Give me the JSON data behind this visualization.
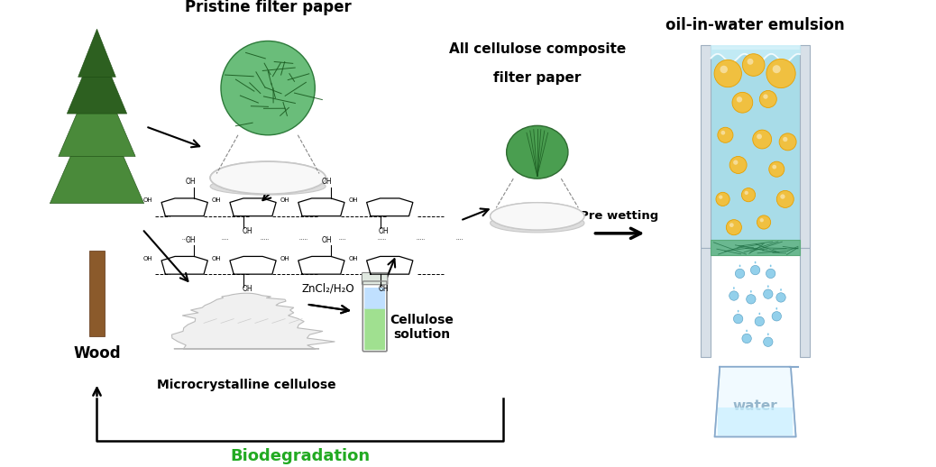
{
  "background_color": "#ffffff",
  "labels": {
    "pristine_filter_paper": "Pristine filter paper",
    "all_cellulose_line1": "All cellulose composite",
    "all_cellulose_line2": "filter paper",
    "oil_in_water": "oil-in-water emulsion",
    "pre_wetting": "Pre wetting",
    "wood": "Wood",
    "microcrystalline": "Microcrystalline cellulose",
    "cellulose_solution": "Cellulose\nsolution",
    "biodegradation": "Biodegradation",
    "water": "water",
    "zncl2": "ZnCl₂/H₂O"
  },
  "colors": {
    "sky_blue": "#a8dce8",
    "oil_yellow": "#f0c040",
    "oil_orange": "#e8a000",
    "green_membrane": "#5aaa7a",
    "teal_membrane": "#6ab890",
    "biodeg_green": "#22aa22",
    "tube_green": "#a0e090",
    "tube_blue": "#c0e0ff",
    "beaker_blue": "#c8f0ff",
    "drop_blue": "#80c8e8",
    "drop_blue_dark": "#4090b8",
    "tree_green_light": "#4a8a3a",
    "tree_green_dark": "#2d6020",
    "trunk_brown": "#8b5a2b",
    "powder_white": "#f0f0f0",
    "filter_white": "#f8f8f8",
    "filter_gray": "#c8c8c8",
    "filter_rim": "#b0b0b0",
    "wall_gray": "#d8e0e8",
    "wall_border": "#a0b0c0"
  }
}
